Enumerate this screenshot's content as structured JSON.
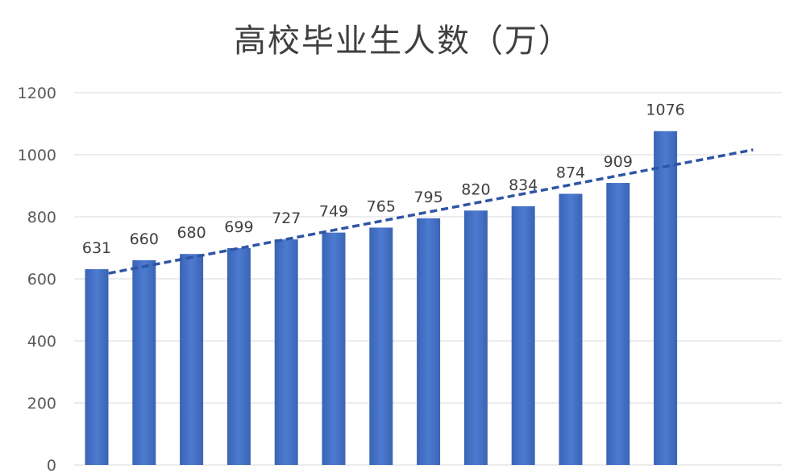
{
  "chart_data": {
    "type": "bar",
    "title": "高校毕业生人数（万）",
    "xlabel": "",
    "ylabel": "",
    "categories": [
      "",
      "",
      "",
      "",
      "",
      "",
      "",
      "",
      "",
      "",
      "",
      "",
      ""
    ],
    "values": [
      631,
      660,
      680,
      699,
      727,
      749,
      765,
      795,
      820,
      834,
      874,
      909,
      1076
    ],
    "ylim": [
      0,
      1200
    ],
    "yticks": [
      0,
      200,
      400,
      600,
      800,
      1000,
      1200
    ],
    "trendline": {
      "type": "linear",
      "style": "dashed"
    },
    "grid": true,
    "legend": "none",
    "bar_color": "#4472C4",
    "trend_color": "#2F55A4"
  }
}
